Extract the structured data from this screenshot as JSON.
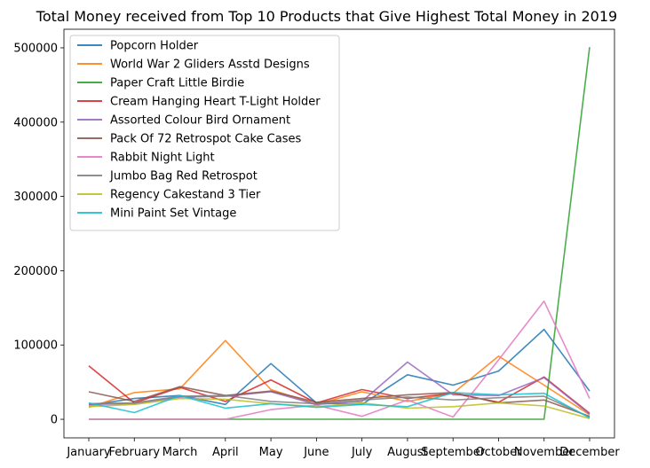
{
  "chart_data": {
    "type": "line",
    "title": "Total Money received from Top 10 Products that Give Highest Total Money in 2019",
    "xlabel": "",
    "ylabel": "",
    "categories": [
      "January",
      "February",
      "March",
      "April",
      "May",
      "June",
      "July",
      "August",
      "September",
      "October",
      "November",
      "December"
    ],
    "ylim": [
      -25000,
      525000
    ],
    "yticks": [
      0,
      100000,
      200000,
      300000,
      400000,
      500000
    ],
    "grid": false,
    "legend_position": "top-left",
    "series": [
      {
        "name": "Popcorn Holder",
        "color": "#1f77b4",
        "values": [
          19000,
          28000,
          32000,
          20000,
          75000,
          22000,
          20000,
          60000,
          46000,
          65000,
          121000,
          38000
        ]
      },
      {
        "name": "World War 2 Gliders Asstd Designs",
        "color": "#ff7f0e",
        "values": [
          16000,
          36000,
          41000,
          106000,
          40000,
          20000,
          37000,
          24000,
          35000,
          85000,
          46000,
          6000
        ]
      },
      {
        "name": "Paper Craft Little Birdie",
        "color": "#2ca02c",
        "values": [
          0,
          0,
          0,
          0,
          0,
          0,
          0,
          0,
          0,
          0,
          0,
          501000
        ]
      },
      {
        "name": "Cream Hanging Heart T-Light Holder",
        "color": "#d62728",
        "values": [
          72000,
          22000,
          43000,
          24000,
          53000,
          22000,
          40000,
          28000,
          35000,
          23000,
          57000,
          8000
        ]
      },
      {
        "name": "Assorted Colour Bird Ornament",
        "color": "#9467bd",
        "values": [
          20000,
          21000,
          30000,
          31000,
          37000,
          20000,
          24000,
          77000,
          33000,
          32000,
          56000,
          7000
        ]
      },
      {
        "name": "Pack Of 72 Retrospot Cake Cases",
        "color": "#8c564b",
        "values": [
          37000,
          24000,
          44000,
          32000,
          38000,
          23000,
          28000,
          33000,
          36000,
          22000,
          26000,
          4000
        ]
      },
      {
        "name": "Rabbit Night Light",
        "color": "#e377c2",
        "values": [
          0,
          0,
          0,
          0,
          13000,
          19000,
          4000,
          26000,
          3000,
          80000,
          159000,
          28000
        ]
      },
      {
        "name": "Jumbo Bag Red Retrospot",
        "color": "#7f7f7f",
        "values": [
          21000,
          22000,
          31000,
          32000,
          24000,
          21000,
          26000,
          30000,
          26000,
          29000,
          31000,
          3000
        ]
      },
      {
        "name": "Regency Cakestand 3 Tier",
        "color": "#bcbd22",
        "values": [
          17000,
          20000,
          28000,
          27000,
          21000,
          17000,
          22000,
          15000,
          17000,
          22000,
          18000,
          1000
        ]
      },
      {
        "name": "Mini Paint Set Vintage",
        "color": "#17becf",
        "values": [
          22000,
          9000,
          32000,
          15000,
          21000,
          16000,
          20000,
          17000,
          36000,
          33000,
          35000,
          2000
        ]
      }
    ]
  }
}
